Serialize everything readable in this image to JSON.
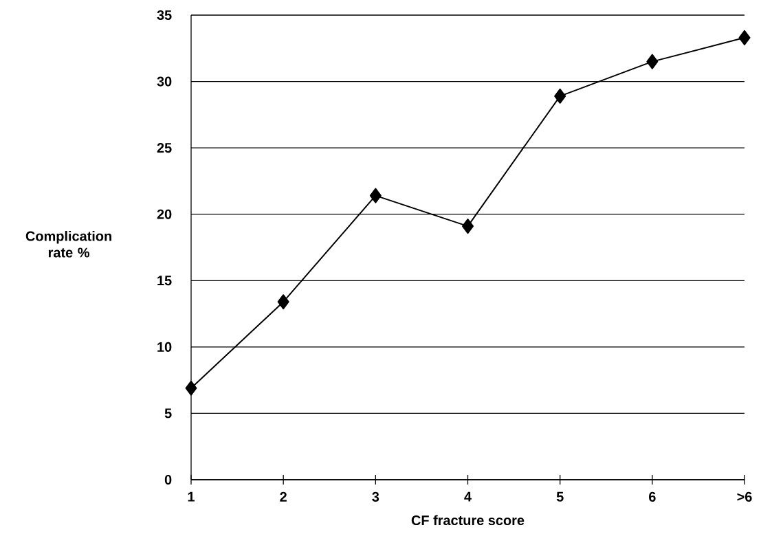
{
  "chart_data": {
    "type": "line",
    "xlabel": "CF fracture score",
    "ylabel": "Complication rate %",
    "categories": [
      "1",
      "2",
      "3",
      "4",
      "5",
      "6",
      ">6"
    ],
    "values": [
      6.9,
      13.4,
      21.4,
      19.1,
      28.9,
      31.5,
      33.3
    ],
    "color": "#000000",
    "ylim": [
      0,
      35
    ],
    "yticks": [
      0,
      5,
      10,
      15,
      20,
      25,
      30,
      35
    ],
    "grid": "y",
    "marker": "diamond",
    "line_style": "solid"
  }
}
